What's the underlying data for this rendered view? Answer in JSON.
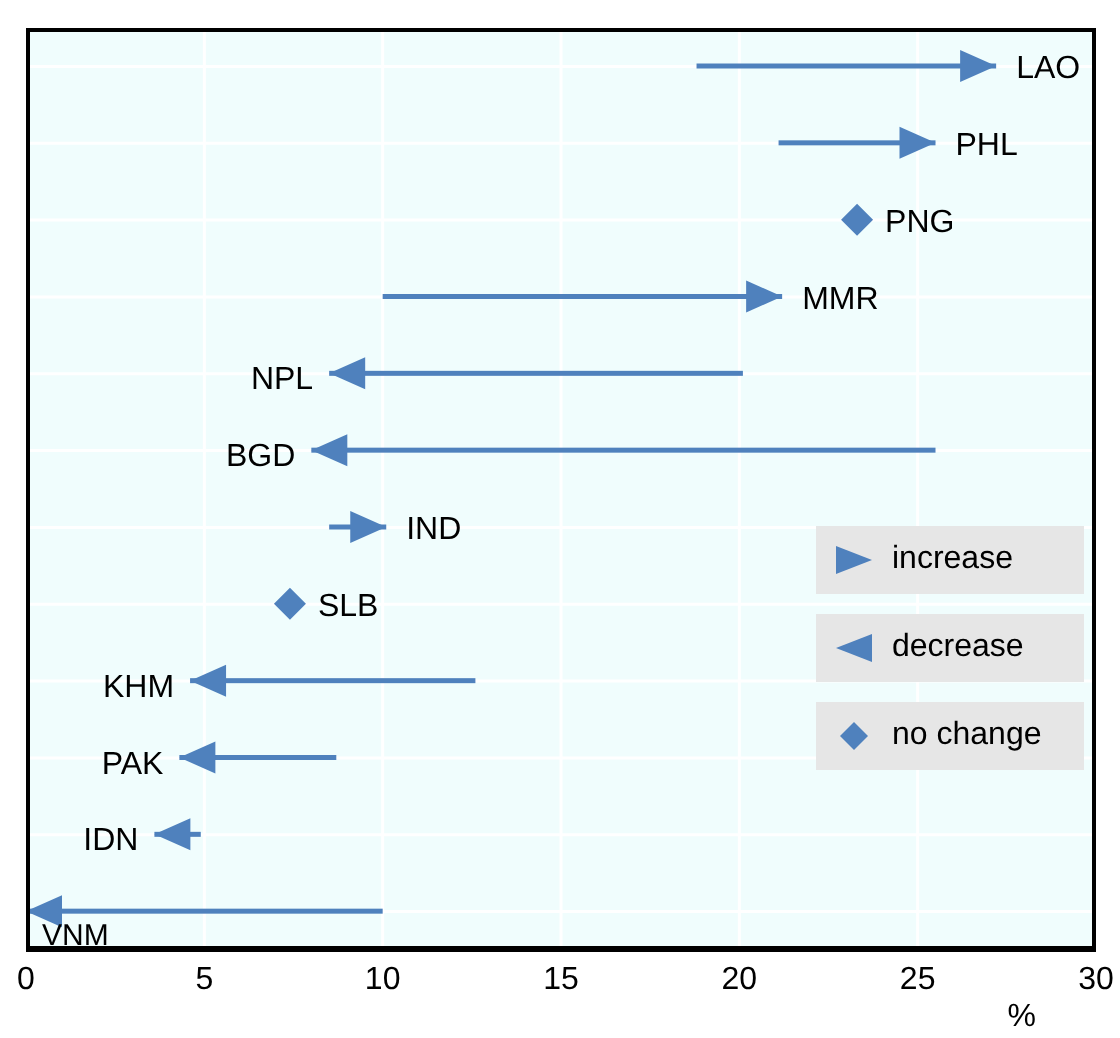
{
  "chart_data": {
    "type": "bar",
    "orientation": "horizontal",
    "categories": [
      "LAO",
      "PHL",
      "PNG",
      "MMR",
      "NPL",
      "BGD",
      "IND",
      "SLB",
      "KHM",
      "PAK",
      "IDN",
      "VNM"
    ],
    "series": [
      {
        "name": "increase",
        "color": "#4f81bd",
        "base": [
          18.8,
          21.1,
          null,
          10.0,
          null,
          null,
          8.5,
          null,
          null,
          null,
          null,
          null
        ],
        "values": [
          8.4,
          4.4,
          null,
          11.2,
          null,
          null,
          1.6,
          null,
          null,
          null,
          null,
          null
        ]
      },
      {
        "name": "decrease",
        "color": "#4f81bd",
        "base": [
          null,
          null,
          null,
          null,
          20.1,
          25.5,
          null,
          null,
          12.6,
          8.7,
          4.9,
          10.0
        ],
        "values": [
          null,
          null,
          null,
          null,
          -11.6,
          -17.5,
          null,
          null,
          -8.0,
          -4.4,
          -1.3,
          -10.0
        ]
      },
      {
        "name": "no change",
        "type": "scatter",
        "marker": "diamond",
        "color": "#4f81bd",
        "values": [
          null,
          null,
          23.3,
          null,
          null,
          null,
          null,
          7.4,
          null,
          null,
          null,
          null
        ]
      }
    ],
    "xlim": [
      0,
      30
    ],
    "xticks": [
      0,
      5,
      10,
      15,
      20,
      25,
      30
    ],
    "xlabel": "%",
    "grid": true,
    "legend": "right"
  }
}
